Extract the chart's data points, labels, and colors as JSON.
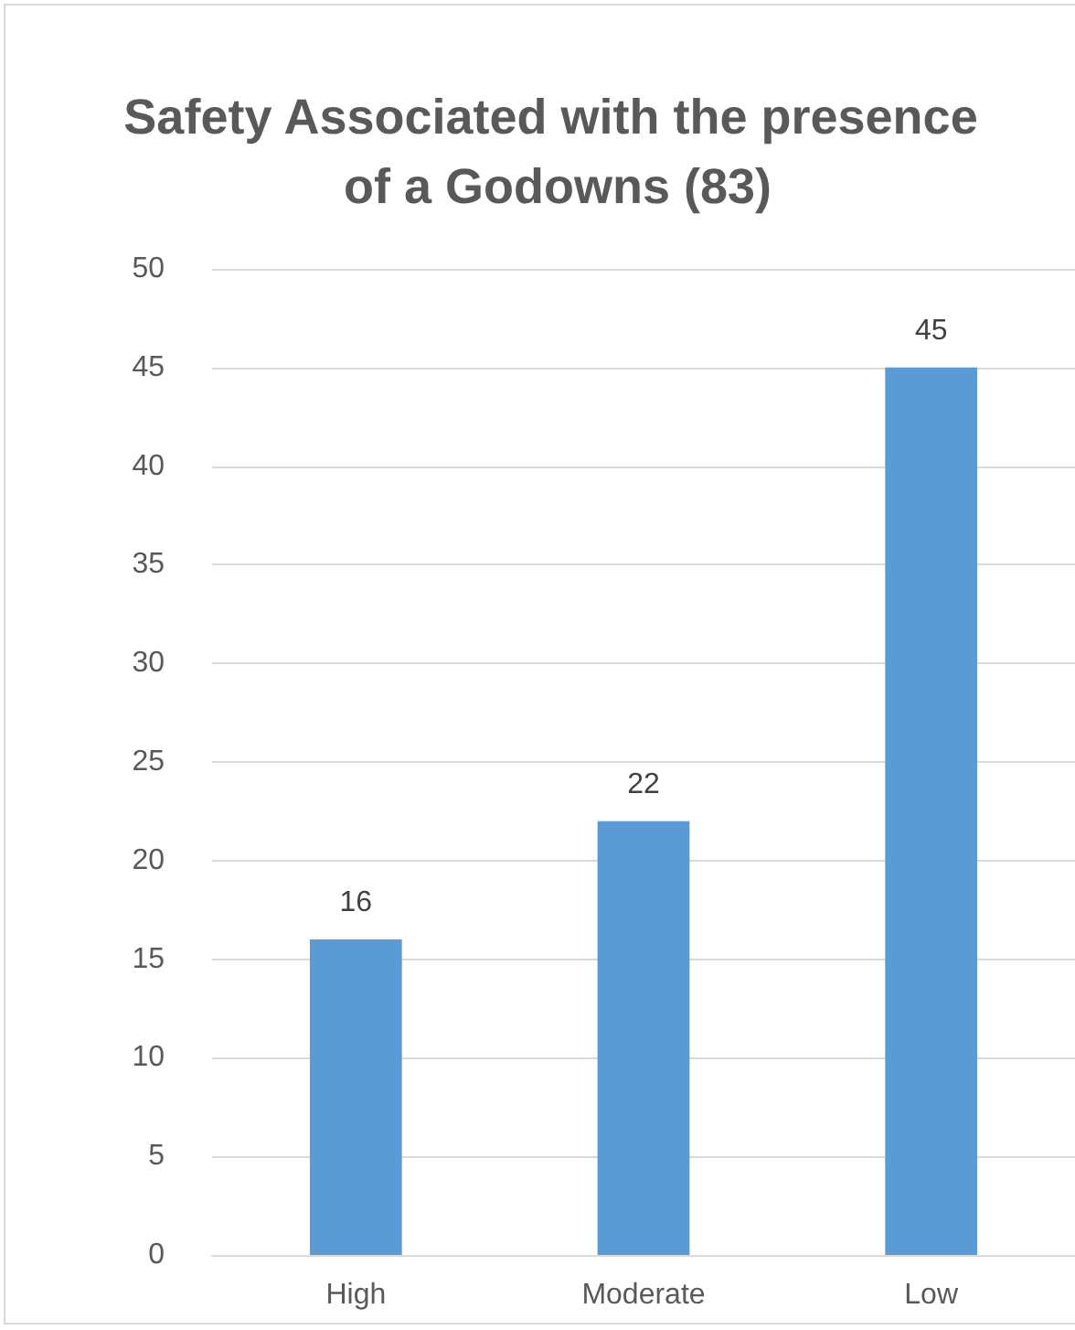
{
  "chart_data": {
    "type": "bar",
    "title": "Safety Associated with the presence of a Godowns (83)",
    "categories": [
      "High",
      "Moderate",
      "Low"
    ],
    "values": [
      16,
      22,
      45
    ],
    "color": "#5b9bd5",
    "ylim": [
      0,
      50
    ],
    "yticks": [
      0,
      5,
      10,
      15,
      20,
      25,
      30,
      35,
      40,
      45,
      50
    ],
    "grid": "y",
    "data_labels": true
  }
}
